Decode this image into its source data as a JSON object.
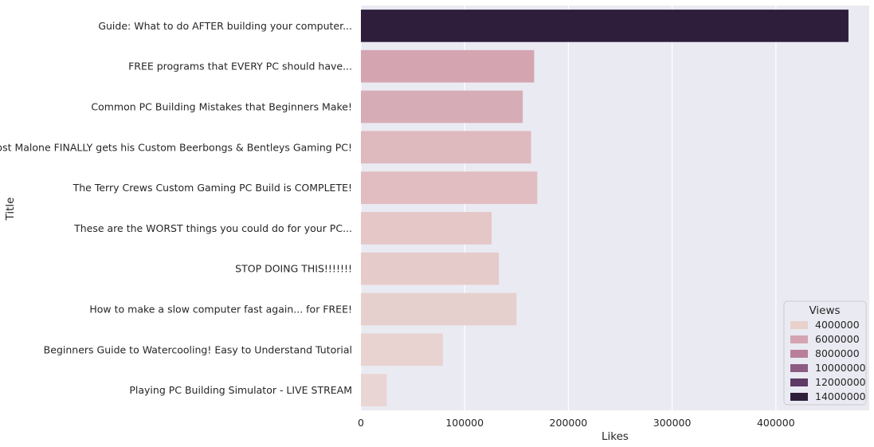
{
  "chart_data": {
    "type": "bar",
    "orientation": "horizontal",
    "xlabel": "Likes",
    "ylabel": "Title",
    "xlim": [
      0,
      490000
    ],
    "xticks": [
      0,
      100000,
      200000,
      300000,
      400000
    ],
    "xtick_labels": [
      "0",
      "100000",
      "200000",
      "300000",
      "400000"
    ],
    "grid": true,
    "background_color": "#eaeaf2",
    "categories": [
      "Guide: What to do AFTER building your computer...",
      "FREE programs that EVERY PC should have...",
      "Common PC Building Mistakes that Beginners Make!",
      "Post Malone FINALLY gets his Custom Beerbongs & Bentleys Gaming PC!",
      "The Terry Crews Custom Gaming PC Build is COMPLETE!",
      "These are the WORST things you could do for your PC...",
      "STOP DOING THIS!!!!!!!",
      "How to make a slow computer fast again... for FREE!",
      "Beginners Guide to Watercooling! Easy to Understand Tutorial",
      "Playing PC Building Simulator - LIVE STREAM"
    ],
    "values": [
      470000,
      167000,
      156000,
      164000,
      170000,
      126000,
      133000,
      150000,
      79000,
      25000
    ],
    "hue_values": [
      14600000,
      6100000,
      6000000,
      5000000,
      5000000,
      4300000,
      4300000,
      3900000,
      3500000,
      3400000
    ],
    "bar_colors": [
      "#2e1e3b",
      "#d4a5b1",
      "#d6adb6",
      "#deb9be",
      "#e1bdc1",
      "#e5c7c8",
      "#e6cbcb",
      "#e6d0cd",
      "#e8d3d1",
      "#e9d6d4"
    ],
    "legend": {
      "title": "Views",
      "placement": "lower-right",
      "entries": [
        {
          "label": "4000000",
          "color": "#e8d0cd"
        },
        {
          "label": "6000000",
          "color": "#d4a5b1"
        },
        {
          "label": "8000000",
          "color": "#b87f99"
        },
        {
          "label": "10000000",
          "color": "#8d5a84"
        },
        {
          "label": "12000000",
          "color": "#5e3a65"
        },
        {
          "label": "14000000",
          "color": "#2e1e3b"
        }
      ]
    }
  }
}
